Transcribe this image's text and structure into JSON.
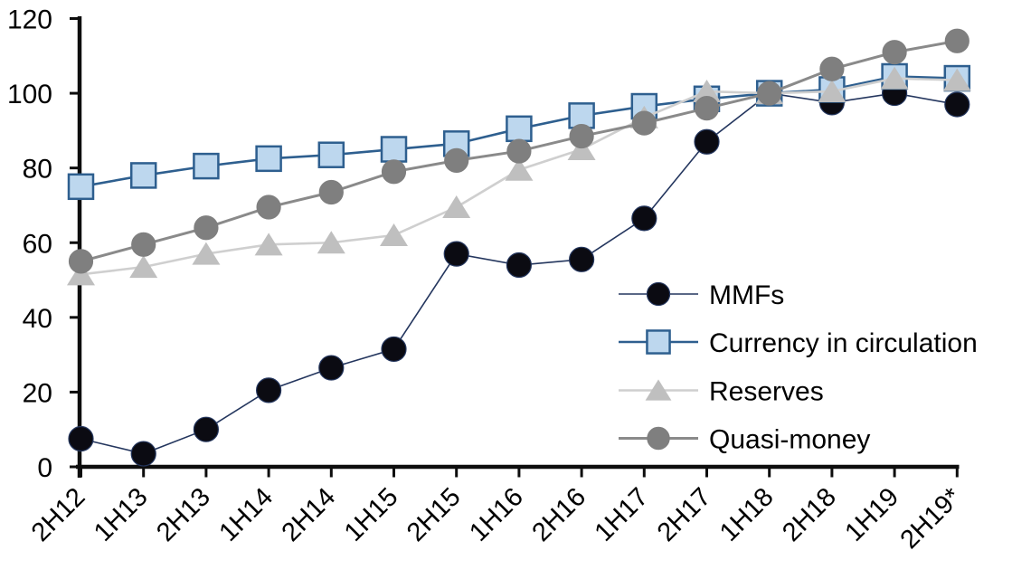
{
  "chart_data": {
    "type": "line",
    "title": "",
    "xlabel": "",
    "ylabel": "",
    "ylim": [
      0,
      120
    ],
    "y_ticks": [
      0,
      20,
      40,
      60,
      80,
      100,
      120
    ],
    "grid": "off",
    "legend_position": "inside-right",
    "axis_color": "#0d0d0d",
    "text_color": "#000000",
    "categories": [
      "2H12",
      "1H13",
      "2H13",
      "1H14",
      "2H14",
      "1H15",
      "2H15",
      "1H16",
      "2H16",
      "1H17",
      "2H17",
      "1H18",
      "2H18",
      "1H19",
      "2H19*"
    ],
    "series": [
      {
        "name": "MMFs",
        "marker": "circle",
        "marker_color": "#0b0b12",
        "marker_border": "#24365e",
        "line_color": "#24365e",
        "line_width": 1.6,
        "values": [
          7.5,
          3.5,
          10,
          20.5,
          26.5,
          31.5,
          57,
          54,
          55.5,
          66.5,
          87,
          100,
          97.5,
          100,
          97
        ]
      },
      {
        "name": "Currency in circulation",
        "marker": "square",
        "marker_color": "#bdd7ee",
        "marker_border": "#2e5f8f",
        "line_color": "#2e5f8f",
        "line_width": 2.6,
        "values": [
          75,
          78,
          80.5,
          82.5,
          83.5,
          85,
          86.5,
          90.5,
          94,
          96.5,
          98.5,
          100,
          101,
          104.5,
          104
        ]
      },
      {
        "name": "Reserves",
        "marker": "triangle",
        "marker_color": "#bfbfbf",
        "marker_border": "#bfbfbf",
        "line_color": "#cfcfcf",
        "line_width": 2.6,
        "values": [
          51.5,
          53.5,
          57,
          59.5,
          60,
          62,
          69.5,
          79.5,
          85,
          93.5,
          100.5,
          100,
          100.5,
          104,
          103.5
        ]
      },
      {
        "name": "Quasi-money",
        "marker": "circle",
        "marker_color": "#7f7f7f",
        "marker_border": "#7f7f7f",
        "line_color": "#8a8a8a",
        "line_width": 3,
        "values": [
          55,
          59.5,
          64,
          69.5,
          73.5,
          79,
          82,
          84.5,
          88.5,
          92,
          96,
          100,
          106.5,
          111,
          114
        ]
      }
    ]
  }
}
